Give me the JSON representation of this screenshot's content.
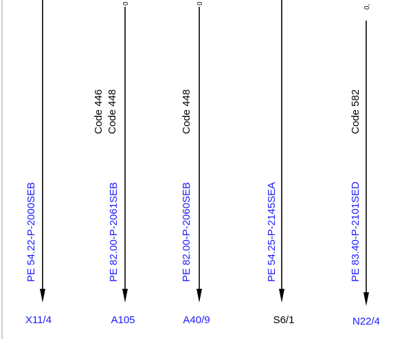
{
  "columns": [
    {
      "pe": "PE 54.22-P-2000SEB",
      "codes": [],
      "bottom": "X11/4"
    },
    {
      "pe": "PE 82.00-P-2061SEB",
      "codes": [
        "Code 446",
        "Code 448"
      ],
      "bottom": "A105",
      "top": "0"
    },
    {
      "pe": "PE 82.00-P-2060SEB",
      "codes": [
        "Code 448"
      ],
      "bottom": "A40/9",
      "top": "0"
    },
    {
      "pe": "PE 54.25-P-2145SEA",
      "codes": [],
      "bottom": "S6/1"
    },
    {
      "pe": "PE 83.40-P-2101SED",
      "codes": [
        "Code 582"
      ],
      "bottom": "N22/4",
      "top": "0,"
    }
  ]
}
